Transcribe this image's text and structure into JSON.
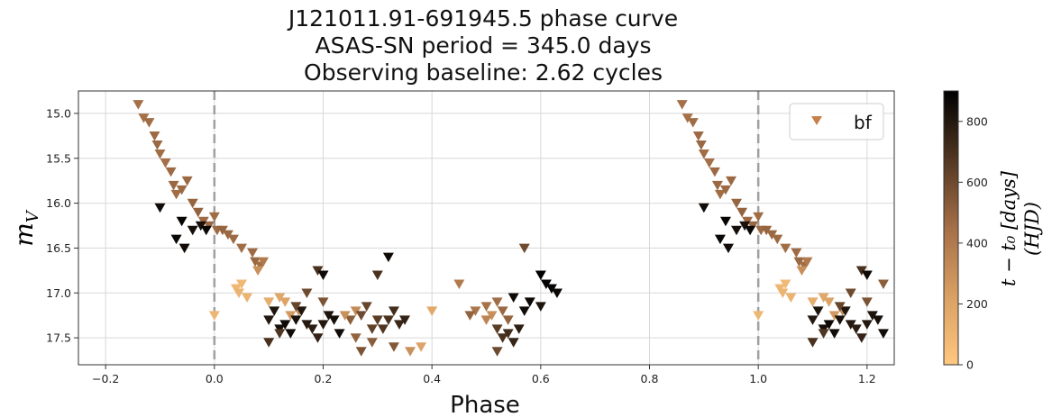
{
  "chart_data": {
    "type": "scatter",
    "title_lines": [
      "J121011.91-691945.5 phase curve",
      "ASAS-SN period = 345.0 days",
      "Observing baseline: 2.62 cycles"
    ],
    "xlabel": "Phase",
    "ylabel_main": "m",
    "ylabel_sub": "V",
    "xlim": [
      -0.25,
      1.25
    ],
    "ylim": [
      17.8,
      14.75
    ],
    "y_inverted": true,
    "xticks": [
      -0.2,
      0.0,
      0.2,
      0.4,
      0.6,
      0.8,
      1.0,
      1.2
    ],
    "xtick_labels": [
      "−0.2",
      "0.0",
      "0.2",
      "0.4",
      "0.6",
      "0.8",
      "1.0",
      "1.2"
    ],
    "yticks": [
      15.0,
      15.5,
      16.0,
      16.5,
      17.0,
      17.5
    ],
    "ytick_labels": [
      "15.0",
      "15.5",
      "16.0",
      "16.5",
      "17.0",
      "17.5"
    ],
    "grid": true,
    "vlines": [
      0.0,
      1.0
    ],
    "legend": {
      "label": "bf",
      "position": "top-right"
    },
    "marker": "triangle-down",
    "colorbar": {
      "label_line1": "t − t₀ [days]",
      "label_line2": "(HJD)",
      "range": [
        0,
        900
      ],
      "ticks": [
        0,
        200,
        400,
        600,
        800
      ],
      "tick_labels": [
        "0",
        "200",
        "400",
        "600",
        "800"
      ],
      "colormap": "copper_r",
      "color_low": "#ffc77f",
      "color_high": "#000000"
    },
    "series": [
      {
        "name": "bf",
        "points": [
          [
            -0.14,
            14.9,
            450
          ],
          [
            -0.13,
            15.05,
            440
          ],
          [
            -0.12,
            15.1,
            460
          ],
          [
            -0.11,
            15.25,
            470
          ],
          [
            -0.105,
            15.35,
            480
          ],
          [
            -0.1,
            15.45,
            460
          ],
          [
            -0.09,
            15.55,
            450
          ],
          [
            -0.08,
            15.65,
            470
          ],
          [
            -0.075,
            15.8,
            480
          ],
          [
            -0.07,
            15.9,
            460
          ],
          [
            -0.06,
            15.85,
            470
          ],
          [
            -0.05,
            15.75,
            480
          ],
          [
            -0.04,
            16.0,
            490
          ],
          [
            -0.03,
            16.1,
            500
          ],
          [
            -0.02,
            16.2,
            470
          ],
          [
            -0.01,
            16.25,
            480
          ],
          [
            0.0,
            16.15,
            460
          ],
          [
            0.005,
            16.3,
            470
          ],
          [
            0.015,
            16.3,
            490
          ],
          [
            0.025,
            16.35,
            480
          ],
          [
            0.035,
            16.4,
            470
          ],
          [
            0.05,
            16.5,
            460
          ],
          [
            0.07,
            16.55,
            470
          ],
          [
            0.075,
            16.65,
            480
          ],
          [
            0.085,
            16.7,
            460
          ],
          [
            -0.1,
            16.05,
            850
          ],
          [
            -0.06,
            16.2,
            880
          ],
          [
            -0.07,
            16.4,
            870
          ],
          [
            -0.055,
            16.5,
            860
          ],
          [
            -0.04,
            16.3,
            840
          ],
          [
            -0.025,
            16.25,
            830
          ],
          [
            -0.015,
            16.3,
            870
          ],
          [
            0.0,
            17.25,
            100
          ],
          [
            0.04,
            16.95,
            90
          ],
          [
            0.045,
            17.0,
            110
          ],
          [
            0.05,
            16.9,
            80
          ],
          [
            0.06,
            17.05,
            120
          ],
          [
            0.08,
            16.75,
            300
          ],
          [
            0.09,
            16.65,
            400
          ],
          [
            0.1,
            17.1,
            150
          ],
          [
            0.12,
            17.05,
            180
          ],
          [
            0.13,
            17.1,
            200
          ],
          [
            0.14,
            17.25,
            250
          ],
          [
            0.155,
            17.2,
            300
          ],
          [
            0.1,
            17.3,
            800
          ],
          [
            0.11,
            17.2,
            820
          ],
          [
            0.12,
            17.4,
            840
          ],
          [
            0.13,
            17.35,
            860
          ],
          [
            0.14,
            17.45,
            850
          ],
          [
            0.15,
            17.3,
            830
          ],
          [
            0.16,
            17.2,
            810
          ],
          [
            0.17,
            17.35,
            800
          ],
          [
            0.18,
            17.4,
            780
          ],
          [
            0.19,
            17.5,
            760
          ],
          [
            0.2,
            17.35,
            800
          ],
          [
            0.21,
            17.25,
            820
          ],
          [
            0.22,
            17.3,
            840
          ],
          [
            0.23,
            17.45,
            850
          ],
          [
            0.1,
            17.55,
            700
          ],
          [
            0.12,
            17.45,
            680
          ],
          [
            0.15,
            17.15,
            620
          ],
          [
            0.17,
            17.0,
            600
          ],
          [
            0.2,
            17.1,
            560
          ],
          [
            0.25,
            17.3,
            520
          ],
          [
            0.19,
            16.75,
            700
          ],
          [
            0.2,
            16.8,
            860
          ],
          [
            0.24,
            17.25,
            300
          ],
          [
            0.26,
            17.2,
            320
          ],
          [
            0.27,
            17.25,
            600
          ],
          [
            0.28,
            17.15,
            620
          ],
          [
            0.29,
            17.4,
            640
          ],
          [
            0.3,
            17.3,
            650
          ],
          [
            0.31,
            17.4,
            680
          ],
          [
            0.32,
            17.3,
            700
          ],
          [
            0.33,
            17.2,
            720
          ],
          [
            0.34,
            17.35,
            740
          ],
          [
            0.35,
            17.3,
            760
          ],
          [
            0.26,
            17.5,
            500
          ],
          [
            0.29,
            17.55,
            520
          ],
          [
            0.33,
            17.6,
            540
          ],
          [
            0.36,
            17.65,
            300
          ],
          [
            0.38,
            17.6,
            200
          ],
          [
            0.3,
            16.8,
            700
          ],
          [
            0.32,
            16.6,
            860
          ],
          [
            0.27,
            17.65,
            560
          ],
          [
            0.4,
            17.2,
            180
          ],
          [
            0.45,
            16.9,
            400
          ],
          [
            0.48,
            17.2,
            420
          ],
          [
            0.5,
            17.15,
            440
          ],
          [
            0.51,
            17.25,
            300
          ],
          [
            0.52,
            17.1,
            460
          ],
          [
            0.53,
            17.2,
            480
          ],
          [
            0.54,
            17.3,
            500
          ],
          [
            0.5,
            17.3,
            350
          ],
          [
            0.52,
            17.4,
            650
          ],
          [
            0.53,
            17.5,
            700
          ],
          [
            0.54,
            17.45,
            720
          ],
          [
            0.55,
            17.55,
            750
          ],
          [
            0.56,
            17.4,
            780
          ],
          [
            0.55,
            17.05,
            860
          ],
          [
            0.57,
            17.2,
            850
          ],
          [
            0.58,
            17.1,
            870
          ],
          [
            0.6,
            16.8,
            900
          ],
          [
            0.61,
            16.9,
            890
          ],
          [
            0.62,
            16.95,
            880
          ],
          [
            0.63,
            17.0,
            870
          ],
          [
            0.6,
            17.15,
            820
          ],
          [
            0.57,
            16.5,
            600
          ],
          [
            0.47,
            17.25,
            500
          ],
          [
            0.52,
            17.65,
            600
          ],
          [
            0.86,
            14.9,
            450
          ],
          [
            0.87,
            15.05,
            440
          ],
          [
            0.88,
            15.1,
            460
          ],
          [
            0.89,
            15.25,
            470
          ],
          [
            0.895,
            15.35,
            480
          ],
          [
            0.9,
            15.45,
            460
          ],
          [
            0.91,
            15.55,
            450
          ],
          [
            0.92,
            15.65,
            470
          ],
          [
            0.925,
            15.8,
            480
          ],
          [
            0.93,
            15.9,
            460
          ],
          [
            0.94,
            15.85,
            470
          ],
          [
            0.95,
            15.75,
            480
          ],
          [
            0.96,
            16.0,
            490
          ],
          [
            0.97,
            16.1,
            500
          ],
          [
            0.98,
            16.2,
            470
          ],
          [
            0.99,
            16.25,
            480
          ],
          [
            1.0,
            16.15,
            460
          ],
          [
            1.005,
            16.3,
            470
          ],
          [
            1.015,
            16.3,
            490
          ],
          [
            1.025,
            16.35,
            480
          ],
          [
            1.035,
            16.4,
            470
          ],
          [
            1.05,
            16.5,
            460
          ],
          [
            1.07,
            16.55,
            470
          ],
          [
            1.075,
            16.65,
            480
          ],
          [
            1.085,
            16.7,
            460
          ],
          [
            0.9,
            16.05,
            850
          ],
          [
            0.94,
            16.2,
            880
          ],
          [
            0.93,
            16.4,
            870
          ],
          [
            0.945,
            16.5,
            860
          ],
          [
            0.96,
            16.3,
            840
          ],
          [
            0.975,
            16.25,
            830
          ],
          [
            0.985,
            16.3,
            870
          ],
          [
            1.0,
            17.25,
            100
          ],
          [
            1.04,
            16.95,
            90
          ],
          [
            1.045,
            17.0,
            110
          ],
          [
            1.05,
            16.9,
            80
          ],
          [
            1.06,
            17.05,
            120
          ],
          [
            1.08,
            16.75,
            300
          ],
          [
            1.09,
            16.65,
            400
          ],
          [
            1.1,
            17.1,
            150
          ],
          [
            1.12,
            17.05,
            180
          ],
          [
            1.13,
            17.1,
            200
          ],
          [
            1.14,
            17.25,
            250
          ],
          [
            1.155,
            17.2,
            300
          ],
          [
            1.1,
            17.3,
            800
          ],
          [
            1.11,
            17.2,
            820
          ],
          [
            1.12,
            17.4,
            840
          ],
          [
            1.13,
            17.35,
            860
          ],
          [
            1.14,
            17.45,
            850
          ],
          [
            1.15,
            17.3,
            830
          ],
          [
            1.16,
            17.2,
            810
          ],
          [
            1.17,
            17.35,
            800
          ],
          [
            1.18,
            17.4,
            780
          ],
          [
            1.19,
            17.5,
            760
          ],
          [
            1.2,
            17.35,
            800
          ],
          [
            1.21,
            17.25,
            820
          ],
          [
            1.22,
            17.3,
            840
          ],
          [
            1.23,
            17.45,
            850
          ],
          [
            1.1,
            17.55,
            700
          ],
          [
            1.12,
            17.45,
            680
          ],
          [
            1.15,
            17.15,
            620
          ],
          [
            1.17,
            17.0,
            600
          ],
          [
            1.2,
            17.1,
            560
          ],
          [
            1.19,
            16.75,
            700
          ],
          [
            1.2,
            16.8,
            860
          ],
          [
            1.23,
            16.9,
            520
          ]
        ]
      }
    ]
  }
}
